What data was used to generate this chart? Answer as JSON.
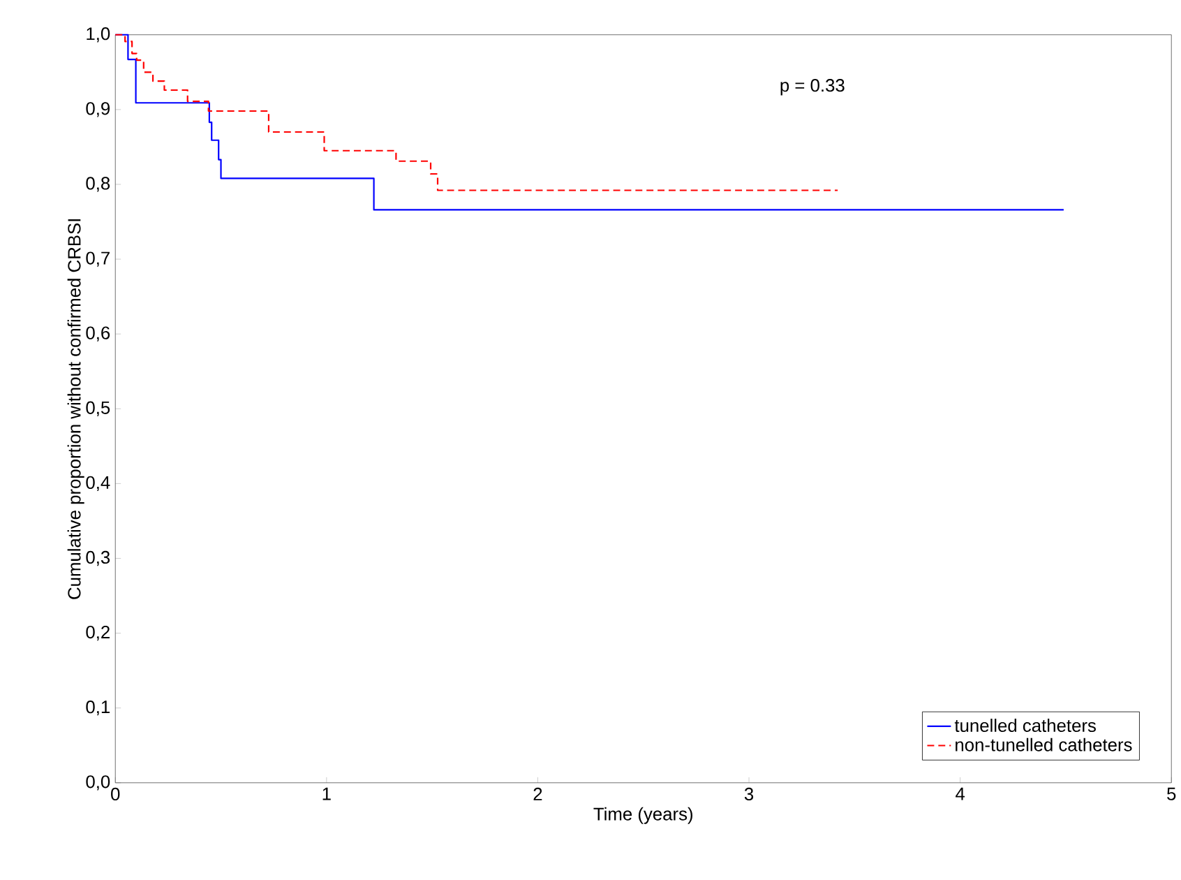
{
  "chart_data": {
    "type": "step",
    "xlabel": "Time (years)",
    "ylabel": "Cumulative proportion without confirmed CRBSI",
    "xlim": [
      0,
      5
    ],
    "ylim": [
      0,
      1
    ],
    "xticks": [
      0,
      1,
      2,
      3,
      4,
      5
    ],
    "yticks": [
      {
        "value": 0,
        "label": "0,0"
      },
      {
        "value": 0.1,
        "label": "0,1"
      },
      {
        "value": 0.2,
        "label": "0,2"
      },
      {
        "value": 0.3,
        "label": "0,3"
      },
      {
        "value": 0.4,
        "label": "0,4"
      },
      {
        "value": 0.5,
        "label": "0,5"
      },
      {
        "value": 0.6,
        "label": "0,6"
      },
      {
        "value": 0.7,
        "label": "0,7"
      },
      {
        "value": 0.8,
        "label": "0,8"
      },
      {
        "value": 0.9,
        "label": "0,9"
      },
      {
        "value": 1.0,
        "label": "1,0"
      }
    ],
    "annotations": [
      "p = 0.33"
    ],
    "legend": "bottom right",
    "grid": false,
    "series": [
      {
        "name": "tunelled catheters",
        "color": "#0000ff",
        "line_style": "solid",
        "x": [
          0,
          0.06,
          0.097,
          0.445,
          0.456,
          0.489,
          0.5,
          1.224,
          4.49
        ],
        "values": [
          1.0,
          0.967,
          0.909,
          0.883,
          0.859,
          0.833,
          0.808,
          0.766,
          0.766
        ]
      },
      {
        "name": "non-tunelled catheters",
        "color": "#ff0000",
        "line_style": "dashed",
        "x": [
          0,
          0.046,
          0.079,
          0.101,
          0.134,
          0.178,
          0.232,
          0.342,
          0.441,
          0.726,
          0.989,
          1.329,
          1.493,
          1.526,
          3.42
        ],
        "values": [
          1.0,
          0.991,
          0.975,
          0.966,
          0.95,
          0.938,
          0.926,
          0.911,
          0.898,
          0.87,
          0.845,
          0.831,
          0.814,
          0.792,
          0.792
        ]
      }
    ]
  }
}
